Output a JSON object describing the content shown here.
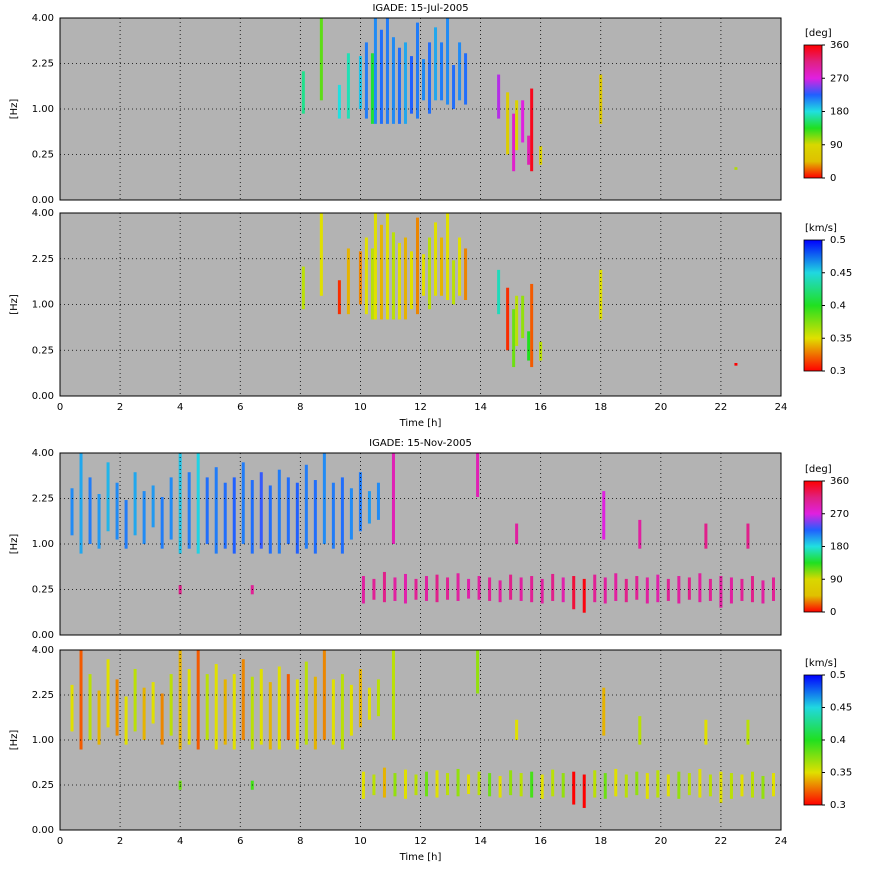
{
  "chart_data": [
    {
      "type": "segments",
      "title": "IGADE: 15-Jul-2005",
      "ylabel": "[Hz]",
      "show_xtick_labels": false,
      "xlim": [
        0,
        24
      ],
      "xticks": [
        0,
        2,
        4,
        6,
        8,
        10,
        12,
        14,
        16,
        18,
        20,
        22,
        24
      ],
      "ylim": [
        0,
        4
      ],
      "yscale": "sqrt",
      "yticks": [
        {
          "value": 0,
          "label": "0.00"
        },
        0.25,
        {
          "value": 1,
          "label": "1.00"
        },
        2.25,
        {
          "value": 4,
          "label": "4.00"
        }
      ],
      "grid": true,
      "background": "#b3b3b3",
      "segments": {
        "x": [
          8.1,
          8.7,
          9.3,
          9.6,
          10.0,
          10.2,
          10.4,
          10.5,
          10.7,
          10.9,
          11.1,
          11.3,
          11.5,
          11.7,
          11.9,
          12.1,
          12.3,
          12.5,
          12.7,
          12.9,
          13.1,
          13.3,
          13.5,
          14.6,
          14.9,
          15.1,
          15.2,
          15.4,
          15.6,
          15.7,
          16.0,
          18.0,
          22.5
        ],
        "y_low": [
          0.9,
          1.2,
          0.8,
          0.8,
          1.0,
          0.8,
          0.7,
          0.7,
          0.7,
          0.7,
          0.7,
          0.7,
          0.7,
          0.9,
          0.8,
          1.2,
          0.9,
          1.2,
          1.2,
          1.1,
          1.0,
          1.2,
          1.1,
          0.8,
          0.25,
          0.1,
          0.3,
          0.4,
          0.15,
          0.1,
          0.15,
          0.7,
          0.11
        ],
        "y_high": [
          2.0,
          4.0,
          1.6,
          2.6,
          2.5,
          3.0,
          2.6,
          4.0,
          3.5,
          4.0,
          3.2,
          2.8,
          3.0,
          2.5,
          3.8,
          2.4,
          3.0,
          3.6,
          3.0,
          4.0,
          2.2,
          3.0,
          2.6,
          1.9,
          1.4,
          0.9,
          1.2,
          1.2,
          0.5,
          1.5,
          0.35,
          1.9,
          0.13
        ],
        "values": [
          160,
          120,
          180,
          170,
          190,
          215,
          140,
          210,
          220,
          215,
          210,
          220,
          200,
          225,
          215,
          210,
          220,
          200,
          215,
          210,
          220,
          210,
          220,
          260,
          70,
          280,
          80,
          270,
          290,
          350,
          75,
          60,
          100
        ]
      },
      "colorbar": {
        "label": "[deg]",
        "lim": [
          0,
          360
        ],
        "ticks": [
          0,
          90,
          180,
          270,
          360
        ],
        "colors": [
          "#ff0000",
          "#e0c000",
          "#d8d800",
          "#20e020",
          "#20e0e0",
          "#2060ff",
          "#e020e0",
          "#e02080",
          "#ff0000"
        ]
      }
    },
    {
      "type": "segments",
      "xlabel": "Time [h]",
      "ylabel": "[Hz]",
      "show_xtick_labels": true,
      "xlim": [
        0,
        24
      ],
      "xticks": [
        0,
        2,
        4,
        6,
        8,
        10,
        12,
        14,
        16,
        18,
        20,
        22,
        24
      ],
      "ylim": [
        0,
        4
      ],
      "yscale": "sqrt",
      "yticks": [
        {
          "value": 0,
          "label": "0.00"
        },
        0.25,
        {
          "value": 1,
          "label": "1.00"
        },
        2.25,
        {
          "value": 4,
          "label": "4.00"
        }
      ],
      "grid": true,
      "background": "#b3b3b3",
      "segments": {
        "x": [
          8.1,
          8.7,
          9.3,
          9.6,
          10.0,
          10.2,
          10.4,
          10.5,
          10.7,
          10.9,
          11.1,
          11.3,
          11.5,
          11.7,
          11.9,
          12.1,
          12.3,
          12.5,
          12.7,
          12.9,
          13.1,
          13.3,
          13.5,
          14.6,
          14.9,
          15.1,
          15.2,
          15.4,
          15.6,
          15.7,
          16.0,
          18.0,
          22.5
        ],
        "y_low": [
          0.9,
          1.2,
          0.8,
          0.8,
          1.0,
          0.8,
          0.7,
          0.7,
          0.7,
          0.7,
          0.7,
          0.7,
          0.7,
          0.9,
          0.8,
          1.2,
          0.9,
          1.2,
          1.2,
          1.1,
          1.0,
          1.2,
          1.1,
          0.8,
          0.25,
          0.1,
          0.3,
          0.4,
          0.15,
          0.1,
          0.15,
          0.7,
          0.11
        ],
        "y_high": [
          2.0,
          4.0,
          1.6,
          2.6,
          2.5,
          3.0,
          2.6,
          4.0,
          3.5,
          4.0,
          3.2,
          2.8,
          3.0,
          2.5,
          3.8,
          2.4,
          3.0,
          3.6,
          3.0,
          4.0,
          2.2,
          3.0,
          2.6,
          1.9,
          1.4,
          0.9,
          1.2,
          1.2,
          0.5,
          1.5,
          0.35,
          1.9,
          0.13
        ],
        "values": [
          0.36,
          0.35,
          0.31,
          0.34,
          0.33,
          0.35,
          0.36,
          0.35,
          0.34,
          0.35,
          0.36,
          0.35,
          0.34,
          0.35,
          0.33,
          0.35,
          0.36,
          0.35,
          0.34,
          0.35,
          0.36,
          0.35,
          0.33,
          0.44,
          0.31,
          0.38,
          0.36,
          0.37,
          0.4,
          0.32,
          0.36,
          0.35,
          0.3
        ]
      },
      "colorbar": {
        "label": "[km/s]",
        "lim": [
          0.3,
          0.5
        ],
        "ticks": [
          0.3,
          0.35,
          0.4,
          0.45,
          0.5
        ],
        "colors": [
          "#ff0000",
          "#e0e000",
          "#20e020",
          "#20d8e0",
          "#0000ff"
        ]
      }
    },
    {
      "type": "segments",
      "title": "IGADE: 15-Nov-2005",
      "ylabel": "[Hz]",
      "show_xtick_labels": false,
      "xlim": [
        0,
        24
      ],
      "xticks": [
        0,
        2,
        4,
        6,
        8,
        10,
        12,
        14,
        16,
        18,
        20,
        22,
        24
      ],
      "ylim": [
        0,
        4
      ],
      "yscale": "sqrt",
      "yticks": [
        {
          "value": 0,
          "label": "0.00"
        },
        0.25,
        {
          "value": 1,
          "label": "1.00"
        },
        2.25,
        {
          "value": 4,
          "label": "4.00"
        }
      ],
      "grid": true,
      "background": "#b3b3b3",
      "segments": {
        "x": [
          0.4,
          0.7,
          1.0,
          1.3,
          1.6,
          1.9,
          2.2,
          2.5,
          2.8,
          3.1,
          3.4,
          3.7,
          4.0,
          4.3,
          4.6,
          4.9,
          5.2,
          5.5,
          5.8,
          6.1,
          6.4,
          6.7,
          7.0,
          7.3,
          7.6,
          7.9,
          8.2,
          8.5,
          8.8,
          9.1,
          9.4,
          9.7,
          10.0,
          10.3,
          10.6,
          10.1,
          10.45,
          10.8,
          11.15,
          11.5,
          11.85,
          12.2,
          12.55,
          12.9,
          13.25,
          13.6,
          13.95,
          14.3,
          14.65,
          15.0,
          15.35,
          15.7,
          16.05,
          16.4,
          16.75,
          17.1,
          17.45,
          17.8,
          18.15,
          18.5,
          18.85,
          19.2,
          19.55,
          19.9,
          20.25,
          20.6,
          20.95,
          21.3,
          21.65,
          22.0,
          22.35,
          22.7,
          23.05,
          23.4,
          23.75,
          11.1,
          13.9,
          15.2,
          18.1,
          19.3,
          21.5,
          22.9,
          4.0,
          6.4
        ],
        "y_low": [
          1.2,
          0.8,
          1.0,
          0.9,
          1.3,
          1.1,
          0.9,
          1.2,
          1.0,
          1.4,
          0.9,
          1.1,
          0.8,
          0.9,
          0.8,
          1.0,
          0.8,
          0.9,
          0.8,
          1.0,
          0.8,
          0.9,
          0.8,
          0.8,
          1.0,
          0.8,
          0.9,
          0.8,
          1.0,
          0.9,
          0.8,
          1.1,
          1.3,
          1.5,
          1.6,
          0.12,
          0.15,
          0.13,
          0.14,
          0.12,
          0.15,
          0.14,
          0.13,
          0.15,
          0.14,
          0.16,
          0.15,
          0.14,
          0.13,
          0.15,
          0.14,
          0.13,
          0.12,
          0.14,
          0.13,
          0.08,
          0.06,
          0.13,
          0.12,
          0.14,
          0.13,
          0.15,
          0.12,
          0.13,
          0.14,
          0.12,
          0.15,
          0.13,
          0.14,
          0.09,
          0.12,
          0.14,
          0.13,
          0.12,
          0.14,
          1.0,
          2.3,
          1.0,
          1.1,
          0.9,
          0.9,
          0.9,
          0.2,
          0.2
        ],
        "y_high": [
          2.6,
          4.0,
          3.0,
          2.4,
          3.6,
          2.8,
          2.2,
          3.2,
          2.5,
          2.7,
          2.3,
          3.0,
          4.0,
          3.2,
          4.0,
          3.0,
          3.4,
          2.8,
          3.0,
          3.6,
          2.9,
          3.2,
          2.7,
          3.3,
          3.0,
          2.8,
          3.5,
          2.9,
          4.0,
          2.8,
          3.0,
          2.6,
          3.2,
          2.5,
          2.8,
          0.42,
          0.38,
          0.48,
          0.4,
          0.45,
          0.38,
          0.42,
          0.44,
          0.4,
          0.46,
          0.38,
          0.42,
          0.4,
          0.36,
          0.44,
          0.4,
          0.42,
          0.38,
          0.45,
          0.4,
          0.42,
          0.38,
          0.44,
          0.4,
          0.46,
          0.38,
          0.42,
          0.4,
          0.44,
          0.38,
          0.42,
          0.4,
          0.46,
          0.38,
          0.42,
          0.4,
          0.38,
          0.42,
          0.36,
          0.4,
          4.0,
          4.0,
          1.5,
          2.5,
          1.6,
          1.5,
          1.5,
          0.3,
          0.3
        ],
        "values": [
          210,
          200,
          215,
          205,
          195,
          210,
          215,
          200,
          210,
          205,
          215,
          210,
          190,
          215,
          185,
          220,
          215,
          220,
          225,
          215,
          220,
          230,
          220,
          215,
          220,
          225,
          215,
          220,
          210,
          215,
          220,
          210,
          215,
          205,
          210,
          300,
          305,
          310,
          300,
          295,
          305,
          300,
          310,
          305,
          300,
          295,
          300,
          305,
          300,
          310,
          300,
          305,
          300,
          310,
          295,
          340,
          355,
          305,
          300,
          300,
          310,
          305,
          300,
          295,
          305,
          300,
          310,
          300,
          305,
          300,
          300,
          305,
          310,
          300,
          305,
          290,
          290,
          300,
          270,
          300,
          310,
          310,
          310,
          305
        ]
      },
      "colorbar": {
        "label": "[deg]",
        "lim": [
          0,
          360
        ],
        "ticks": [
          0,
          90,
          180,
          270,
          360
        ],
        "colors": [
          "#ff0000",
          "#e0c000",
          "#d8d800",
          "#20e020",
          "#20e0e0",
          "#2060ff",
          "#e020e0",
          "#e02080",
          "#ff0000"
        ]
      }
    },
    {
      "type": "segments",
      "xlabel": "Time [h]",
      "ylabel": "[Hz]",
      "show_xtick_labels": true,
      "xlim": [
        0,
        24
      ],
      "xticks": [
        0,
        2,
        4,
        6,
        8,
        10,
        12,
        14,
        16,
        18,
        20,
        22,
        24
      ],
      "ylim": [
        0,
        4
      ],
      "yscale": "sqrt",
      "yticks": [
        {
          "value": 0,
          "label": "0.00"
        },
        0.25,
        {
          "value": 1,
          "label": "1.00"
        },
        2.25,
        {
          "value": 4,
          "label": "4.00"
        }
      ],
      "grid": true,
      "background": "#b3b3b3",
      "segments": {
        "x": [
          0.4,
          0.7,
          1.0,
          1.3,
          1.6,
          1.9,
          2.2,
          2.5,
          2.8,
          3.1,
          3.4,
          3.7,
          4.0,
          4.3,
          4.6,
          4.9,
          5.2,
          5.5,
          5.8,
          6.1,
          6.4,
          6.7,
          7.0,
          7.3,
          7.6,
          7.9,
          8.2,
          8.5,
          8.8,
          9.1,
          9.4,
          9.7,
          10.0,
          10.3,
          10.6,
          10.1,
          10.45,
          10.8,
          11.15,
          11.5,
          11.85,
          12.2,
          12.55,
          12.9,
          13.25,
          13.6,
          13.95,
          14.3,
          14.65,
          15.0,
          15.35,
          15.7,
          16.05,
          16.4,
          16.75,
          17.1,
          17.45,
          17.8,
          18.15,
          18.5,
          18.85,
          19.2,
          19.55,
          19.9,
          20.25,
          20.6,
          20.95,
          21.3,
          21.65,
          22.0,
          22.35,
          22.7,
          23.05,
          23.4,
          23.75,
          11.1,
          13.9,
          15.2,
          18.1,
          19.3,
          21.5,
          22.9,
          4.0,
          6.4
        ],
        "y_low": [
          1.2,
          0.8,
          1.0,
          0.9,
          1.3,
          1.1,
          0.9,
          1.2,
          1.0,
          1.4,
          0.9,
          1.1,
          0.8,
          0.9,
          0.8,
          1.0,
          0.8,
          0.9,
          0.8,
          1.0,
          0.8,
          0.9,
          0.8,
          0.8,
          1.0,
          0.8,
          0.9,
          0.8,
          1.0,
          0.9,
          0.8,
          1.1,
          1.3,
          1.5,
          1.6,
          0.12,
          0.15,
          0.13,
          0.14,
          0.12,
          0.15,
          0.14,
          0.13,
          0.15,
          0.14,
          0.16,
          0.15,
          0.14,
          0.13,
          0.15,
          0.14,
          0.13,
          0.12,
          0.14,
          0.13,
          0.08,
          0.06,
          0.13,
          0.12,
          0.14,
          0.13,
          0.15,
          0.12,
          0.13,
          0.14,
          0.12,
          0.15,
          0.13,
          0.14,
          0.09,
          0.12,
          0.14,
          0.13,
          0.12,
          0.14,
          1.0,
          2.3,
          1.0,
          1.1,
          0.9,
          0.9,
          0.9,
          0.2,
          0.2
        ],
        "y_high": [
          2.6,
          4.0,
          3.0,
          2.4,
          3.6,
          2.8,
          2.2,
          3.2,
          2.5,
          2.7,
          2.3,
          3.0,
          4.0,
          3.2,
          4.0,
          3.0,
          3.4,
          2.8,
          3.0,
          3.6,
          2.9,
          3.2,
          2.7,
          3.3,
          3.0,
          2.8,
          3.5,
          2.9,
          4.0,
          2.8,
          3.0,
          2.6,
          3.2,
          2.5,
          2.8,
          0.42,
          0.38,
          0.48,
          0.4,
          0.45,
          0.38,
          0.42,
          0.44,
          0.4,
          0.46,
          0.38,
          0.42,
          0.4,
          0.36,
          0.44,
          0.4,
          0.42,
          0.38,
          0.45,
          0.4,
          0.42,
          0.38,
          0.44,
          0.4,
          0.46,
          0.38,
          0.42,
          0.4,
          0.44,
          0.38,
          0.42,
          0.4,
          0.46,
          0.38,
          0.42,
          0.4,
          0.38,
          0.42,
          0.36,
          0.4,
          4.0,
          4.0,
          1.5,
          2.5,
          1.6,
          1.5,
          1.5,
          0.3,
          0.3
        ],
        "values": [
          0.35,
          0.32,
          0.36,
          0.34,
          0.35,
          0.33,
          0.35,
          0.36,
          0.34,
          0.35,
          0.33,
          0.36,
          0.34,
          0.35,
          0.32,
          0.36,
          0.35,
          0.34,
          0.35,
          0.33,
          0.36,
          0.35,
          0.34,
          0.35,
          0.32,
          0.35,
          0.36,
          0.34,
          0.33,
          0.35,
          0.36,
          0.35,
          0.34,
          0.35,
          0.36,
          0.35,
          0.36,
          0.34,
          0.37,
          0.35,
          0.36,
          0.38,
          0.35,
          0.36,
          0.37,
          0.35,
          0.36,
          0.38,
          0.35,
          0.37,
          0.36,
          0.39,
          0.35,
          0.36,
          0.37,
          0.3,
          0.3,
          0.36,
          0.38,
          0.35,
          0.36,
          0.37,
          0.35,
          0.36,
          0.35,
          0.37,
          0.36,
          0.35,
          0.36,
          0.35,
          0.36,
          0.35,
          0.36,
          0.37,
          0.35,
          0.36,
          0.37,
          0.35,
          0.34,
          0.36,
          0.35,
          0.36,
          0.38,
          0.39
        ]
      },
      "colorbar": {
        "label": "[km/s]",
        "lim": [
          0.3,
          0.5
        ],
        "ticks": [
          0.3,
          0.35,
          0.4,
          0.45,
          0.5
        ],
        "colors": [
          "#ff0000",
          "#e0e000",
          "#20e020",
          "#20d8e0",
          "#0000ff"
        ]
      }
    }
  ]
}
